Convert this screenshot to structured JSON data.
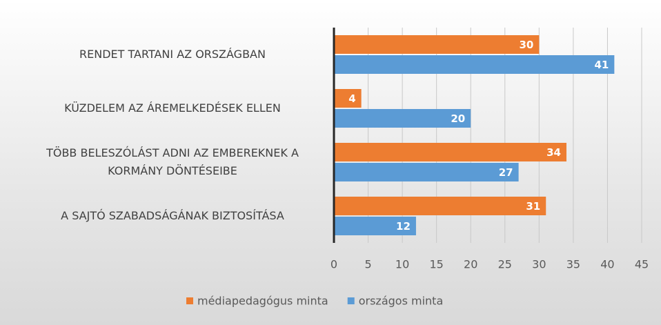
{
  "chart_data": {
    "type": "bar",
    "orientation": "horizontal",
    "categories": [
      "RENDET TARTANI AZ ORSZÁGBAN",
      "KÜZDELEM AZ ÁREMELKEDÉSEK ELLEN",
      "TÖBB BELESZÓLÁST ADNI AZ EMBEREKNEK A KORMÁNY DÖNTÉSEIBE",
      "A SAJTÓ SZABADSÁGÁNAK BIZTOSÍTÁSA"
    ],
    "series": [
      {
        "name": "médiapedagógus minta",
        "color": "#ED7D31",
        "values": [
          30,
          4,
          34,
          31
        ]
      },
      {
        "name": "országos minta",
        "color": "#5B9BD5",
        "values": [
          41,
          20,
          27,
          12
        ]
      }
    ],
    "xlim": [
      0,
      45
    ],
    "xticks": [
      0,
      5,
      10,
      15,
      20,
      25,
      30,
      35,
      40,
      45
    ],
    "grid": true,
    "legend": "bottom"
  }
}
